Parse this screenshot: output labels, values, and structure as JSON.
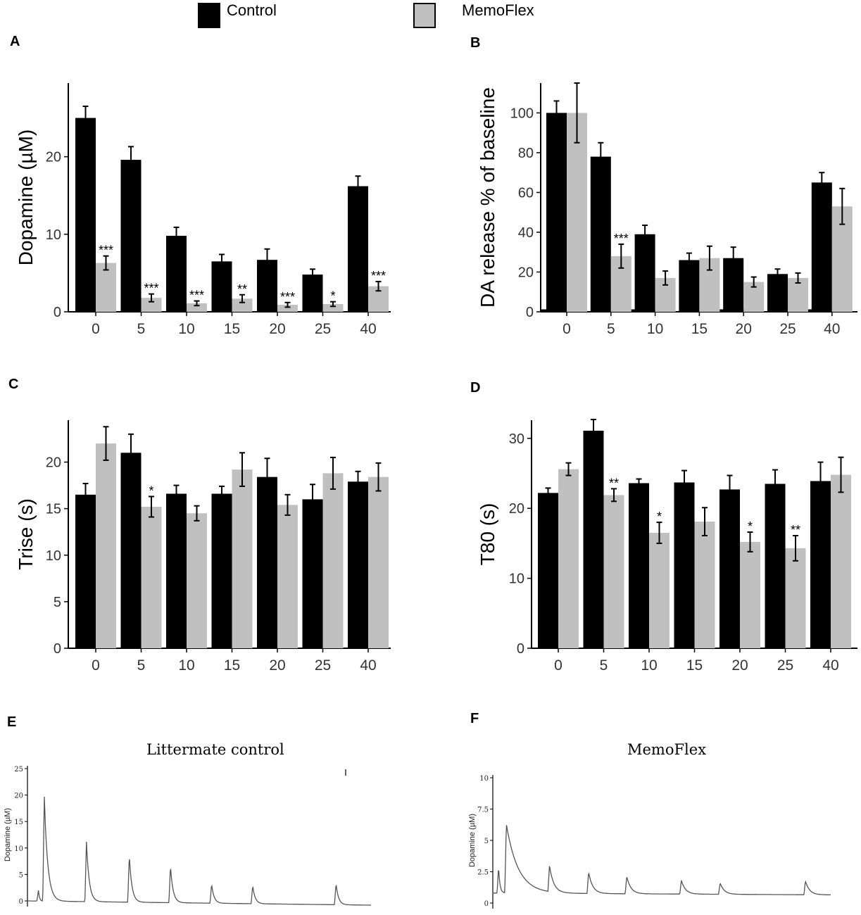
{
  "legend": [
    {
      "label": "Control",
      "color": "#000000"
    },
    {
      "label": "MemoFlex",
      "color": "#c0c0c0"
    }
  ],
  "chart_data": [
    {
      "panel": "A",
      "type": "bar",
      "categories": [
        "0",
        "5",
        "10",
        "15",
        "20",
        "25",
        "40"
      ],
      "ylabel": "Dopamine (µM)",
      "ylim": [
        0,
        29.5
      ],
      "yticks": [
        "0",
        "10",
        "20"
      ],
      "series": [
        {
          "name": "Control",
          "color": "#000000",
          "values": [
            25.0,
            19.6,
            9.8,
            6.5,
            6.7,
            4.8,
            16.2
          ],
          "errors": [
            1.5,
            1.7,
            1.1,
            0.9,
            1.4,
            0.7,
            1.3
          ]
        },
        {
          "name": "MemoFlex",
          "color": "#c0c0c0",
          "values": [
            6.3,
            1.8,
            1.1,
            1.7,
            0.9,
            1.0,
            3.3
          ],
          "errors": [
            0.9,
            0.5,
            0.3,
            0.5,
            0.3,
            0.3,
            0.6
          ]
        }
      ],
      "annotations": [
        {
          "category": "0",
          "text": "***"
        },
        {
          "category": "5",
          "text": "***"
        },
        {
          "category": "10",
          "text": "***"
        },
        {
          "category": "15",
          "text": "**"
        },
        {
          "category": "20",
          "text": "***"
        },
        {
          "category": "25",
          "text": "*"
        },
        {
          "category": "40",
          "text": "***"
        }
      ],
      "baseline_line": false
    },
    {
      "panel": "B",
      "type": "bar",
      "categories": [
        "0",
        "5",
        "10",
        "15",
        "20",
        "25",
        "40"
      ],
      "ylabel": "DA release % of baseline",
      "ylim": [
        0,
        115
      ],
      "yticks": [
        "0",
        "20",
        "40",
        "60",
        "80",
        "100"
      ],
      "series": [
        {
          "name": "Control",
          "color": "#000000",
          "values": [
            100,
            78,
            39,
            26,
            27,
            19,
            65
          ],
          "errors": [
            6,
            7,
            4.5,
            3.5,
            5.5,
            2.5,
            5
          ]
        },
        {
          "name": "MemoFlex",
          "color": "#c0c0c0",
          "values": [
            100,
            28,
            17,
            27,
            15,
            17,
            53
          ],
          "errors": [
            15,
            6,
            3.5,
            6,
            2.5,
            2.5,
            9
          ]
        }
      ],
      "annotations": [
        {
          "category": "5",
          "text": "***"
        }
      ],
      "baseline_line": true
    },
    {
      "panel": "C",
      "type": "bar",
      "categories": [
        "0",
        "5",
        "10",
        "15",
        "20",
        "25",
        "40"
      ],
      "ylabel": "Trise (s)",
      "ylim": [
        0,
        24.5
      ],
      "yticks": [
        "0",
        "5",
        "10",
        "15",
        "20"
      ],
      "series": [
        {
          "name": "Control",
          "color": "#000000",
          "values": [
            16.5,
            21.0,
            16.6,
            16.6,
            18.4,
            16.0,
            17.9
          ],
          "errors": [
            1.2,
            2.0,
            0.9,
            0.8,
            2.0,
            1.6,
            1.1
          ]
        },
        {
          "name": "MemoFlex",
          "color": "#c0c0c0",
          "values": [
            22.0,
            15.2,
            14.5,
            19.2,
            15.4,
            18.8,
            18.4
          ],
          "errors": [
            1.8,
            1.1,
            0.8,
            1.8,
            1.1,
            1.7,
            1.5
          ]
        }
      ],
      "annotations": [
        {
          "category": "5",
          "text": "*"
        }
      ],
      "baseline_line": false
    },
    {
      "panel": "D",
      "type": "bar",
      "categories": [
        "0",
        "5",
        "10",
        "15",
        "20",
        "25",
        "40"
      ],
      "ylabel": "T80 (s)",
      "ylim": [
        0,
        32.6
      ],
      "yticks": [
        "0",
        "10",
        "20",
        "30"
      ],
      "series": [
        {
          "name": "Control",
          "color": "#000000",
          "values": [
            22.2,
            31.1,
            23.6,
            23.7,
            22.7,
            23.5,
            23.9
          ],
          "errors": [
            0.7,
            1.6,
            0.6,
            1.7,
            2.0,
            2.0,
            2.7
          ]
        },
        {
          "name": "MemoFlex",
          "color": "#c0c0c0",
          "values": [
            25.6,
            21.9,
            16.5,
            18.1,
            15.2,
            14.3,
            24.8
          ],
          "errors": [
            0.9,
            0.9,
            1.5,
            2.0,
            1.4,
            1.8,
            2.5
          ]
        }
      ],
      "annotations": [
        {
          "category": "5",
          "text": "**"
        },
        {
          "category": "10",
          "text": "*"
        },
        {
          "category": "20",
          "text": "*"
        },
        {
          "category": "25",
          "text": "**"
        }
      ],
      "baseline_line": false
    },
    {
      "panel": "E",
      "type": "line",
      "title": "Littermate control",
      "ylabel": "Dopamine (µM)",
      "ylim": [
        0,
        25
      ],
      "yticks": [
        "0",
        "5",
        "10",
        "15",
        "20",
        "25"
      ],
      "xlim": [
        0,
        100
      ],
      "peaks": [
        {
          "t": 3.0,
          "height": 2.0,
          "decay": 0.3
        },
        {
          "t": 4.7,
          "height": 20.0,
          "decay": 1.0
        },
        {
          "t": 17.0,
          "height": 11.3,
          "decay": 0.8
        },
        {
          "t": 29.5,
          "height": 8.9,
          "decay": 0.75
        },
        {
          "t": 41.5,
          "height": 7.0,
          "decay": 0.75
        },
        {
          "t": 53.5,
          "height": 3.6,
          "decay": 0.7
        },
        {
          "t": 65.5,
          "height": 3.4,
          "decay": 0.7
        },
        {
          "t": 89.8,
          "height": 4.0,
          "decay": 0.7
        }
      ],
      "baseline_start": 0.0,
      "baseline_end": -0.8
    },
    {
      "panel": "F",
      "type": "line",
      "title": "MemoFlex",
      "ylabel": "Dopamine (µM)",
      "ylim": [
        0,
        10
      ],
      "yticks": [
        "0",
        "2.5",
        "5",
        "7.5",
        "10"
      ],
      "xlim": [
        0,
        100
      ],
      "peaks": [
        {
          "t": 1.5,
          "height": 2.1,
          "decay": 0.4
        },
        {
          "t": 3.8,
          "height": 5.5,
          "decay": 3.5
        },
        {
          "t": 16.6,
          "height": 2.1,
          "decay": 1.2
        },
        {
          "t": 28.2,
          "height": 1.7,
          "decay": 1.2
        },
        {
          "t": 39.5,
          "height": 1.4,
          "decay": 1.2
        },
        {
          "t": 55.7,
          "height": 1.1,
          "decay": 1.2
        },
        {
          "t": 67.2,
          "height": 0.9,
          "decay": 1.2
        },
        {
          "t": 92.5,
          "height": 1.1,
          "decay": 1.2
        }
      ],
      "baseline_start": 0.8,
      "baseline_end": 0.65
    }
  ]
}
